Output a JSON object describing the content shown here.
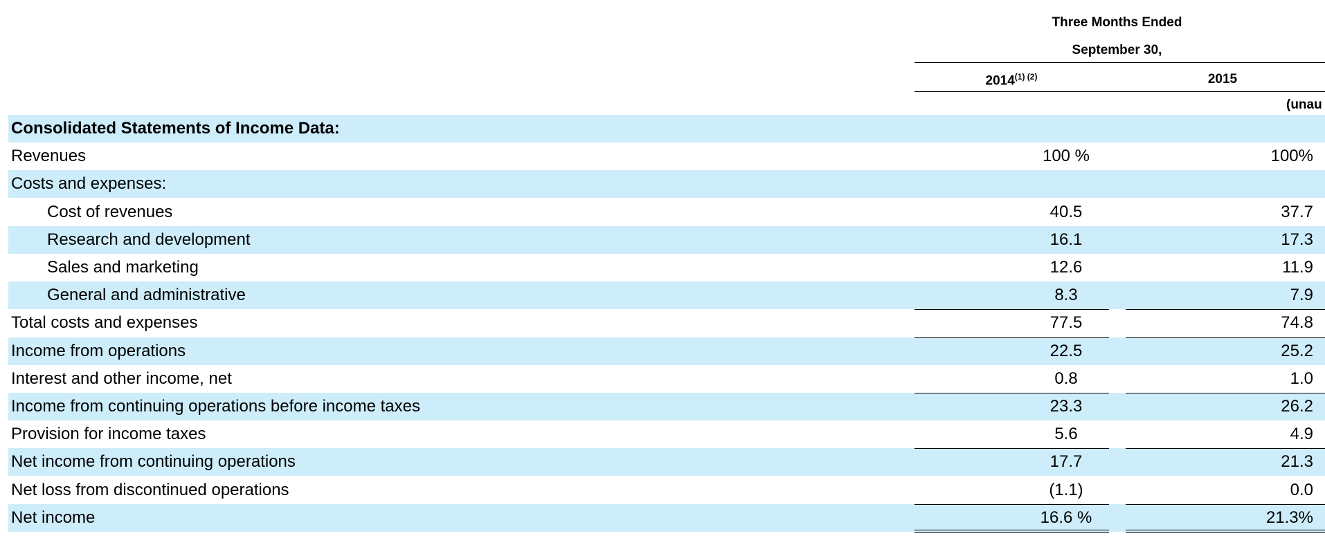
{
  "header": {
    "group_title": "Three Months Ended",
    "period": "September 30,",
    "columns": [
      {
        "year": "2014",
        "notes": "(1) (2)"
      },
      {
        "year": "2015",
        "notes": null
      }
    ],
    "audit_note": "(unau"
  },
  "table": {
    "rows": [
      {
        "label": "Consolidated Statements of Income Data:",
        "values": [
          null,
          null
        ]
      },
      {
        "label": "Revenues",
        "values": [
          "100 %",
          "100%"
        ]
      },
      {
        "label": "Costs and expenses:",
        "values": [
          null,
          null
        ]
      },
      {
        "label": "Cost of revenues",
        "values": [
          "40.5",
          "37.7"
        ]
      },
      {
        "label": "Research and development",
        "values": [
          "16.1",
          "17.3"
        ]
      },
      {
        "label": "Sales and marketing",
        "values": [
          "12.6",
          "11.9"
        ]
      },
      {
        "label": "General and administrative",
        "values": [
          "8.3",
          "7.9"
        ]
      },
      {
        "label": "Total costs and expenses",
        "values": [
          "77.5",
          "74.8"
        ]
      },
      {
        "label": "Income from operations",
        "values": [
          "22.5",
          "25.2"
        ]
      },
      {
        "label": "Interest and other income, net",
        "values": [
          "0.8",
          "1.0"
        ]
      },
      {
        "label": "Income from continuing operations before income taxes",
        "values": [
          "23.3",
          "26.2"
        ]
      },
      {
        "label": "Provision for income taxes",
        "values": [
          "5.6",
          "4.9"
        ]
      },
      {
        "label": "Net income from continuing operations",
        "values": [
          "17.7",
          "21.3"
        ]
      },
      {
        "label": "Net loss from discontinued operations",
        "values": [
          "(1.1)",
          "0.0"
        ]
      },
      {
        "label": "Net income",
        "values": [
          "16.6 %",
          "21.3%"
        ]
      }
    ]
  }
}
